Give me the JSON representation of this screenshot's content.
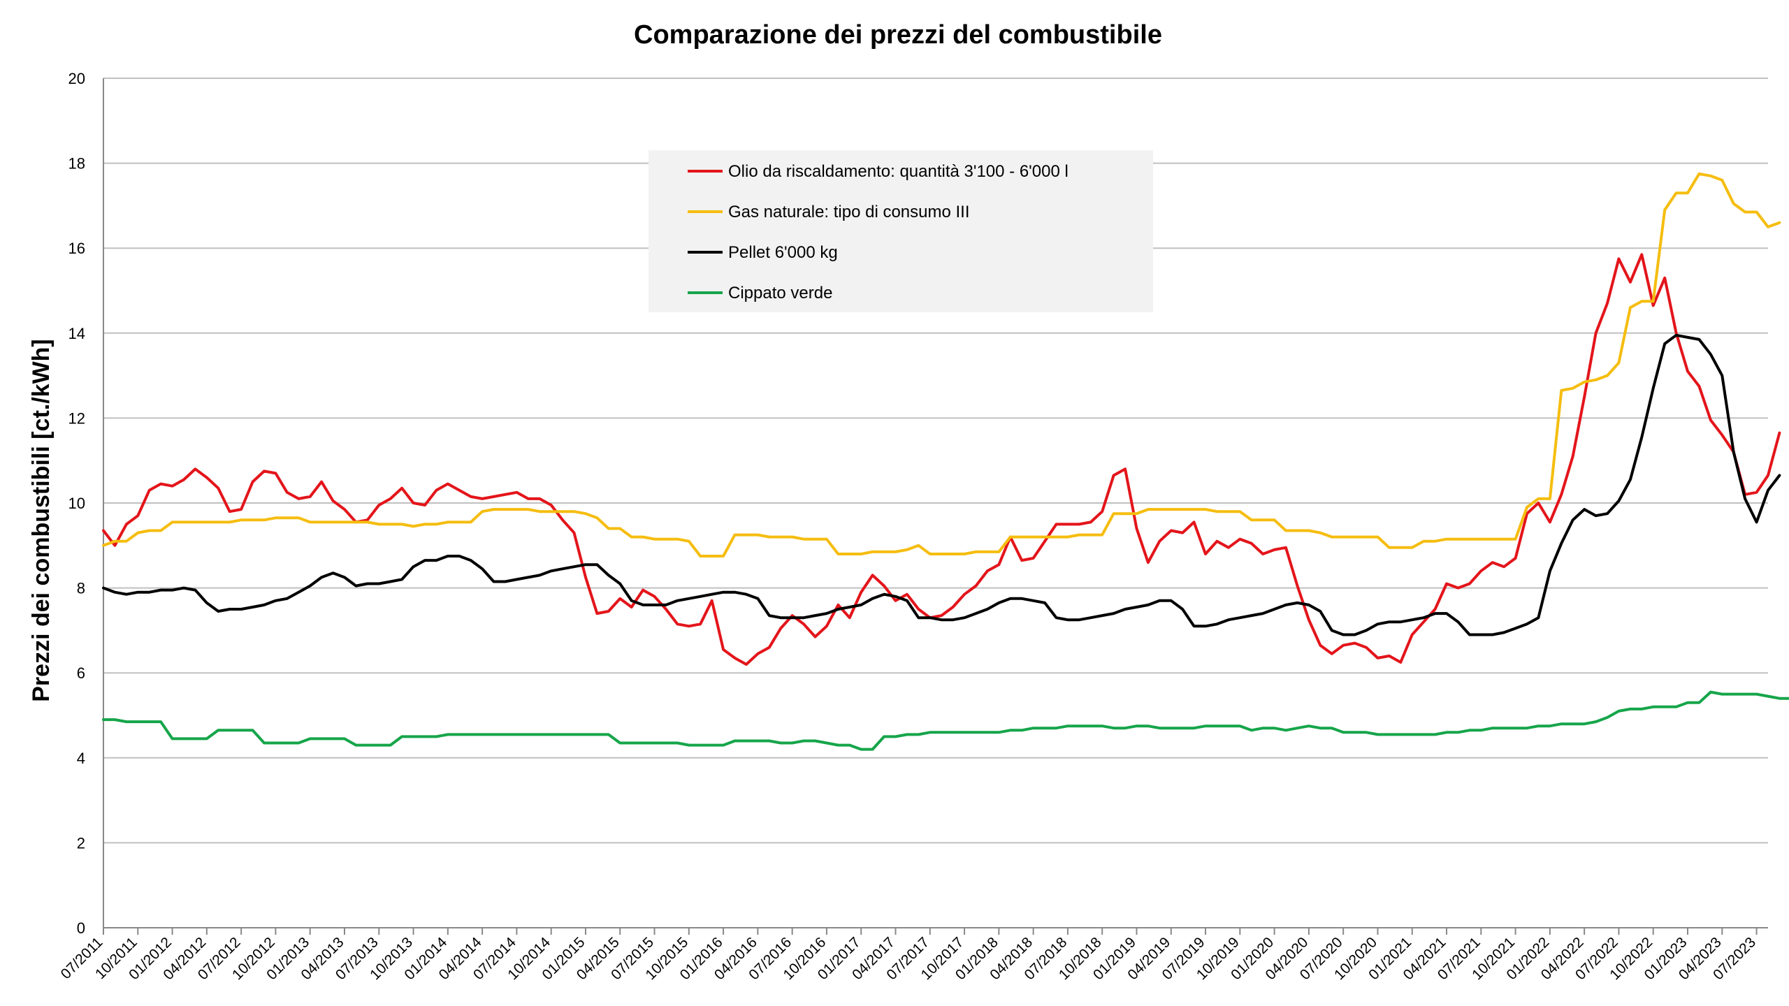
{
  "chart_data": {
    "type": "line",
    "title": "Comparazione dei prezzi del combustibile",
    "ylabel": "Prezzi dei combustibili [ct./kWh]",
    "xlabel": "",
    "ylim": [
      0,
      20
    ],
    "yticks": [
      0,
      2,
      4,
      6,
      8,
      10,
      12,
      14,
      16,
      18,
      20
    ],
    "grid": "horizontal",
    "legend_position": "top-center",
    "x_start": "07/2011",
    "x_end": "08/2023",
    "x_ticks": [
      "07/2011",
      "10/2011",
      "01/2012",
      "04/2012",
      "07/2012",
      "10/2012",
      "01/2013",
      "04/2013",
      "07/2013",
      "10/2013",
      "01/2014",
      "04/2014",
      "07/2014",
      "10/2014",
      "01/2015",
      "04/2015",
      "07/2015",
      "10/2015",
      "01/2016",
      "04/2016",
      "07/2016",
      "10/2016",
      "01/2017",
      "04/2017",
      "07/2017",
      "10/2017",
      "01/2018",
      "04/2018",
      "07/2018",
      "10/2018",
      "01/2019",
      "04/2019",
      "07/2019",
      "10/2019",
      "01/2020",
      "04/2020",
      "07/2020",
      "10/2020",
      "01/2021",
      "04/2021",
      "07/2021",
      "10/2021",
      "01/2022",
      "04/2022",
      "07/2022",
      "10/2022",
      "01/2023",
      "04/2023",
      "07/2023"
    ],
    "series": [
      {
        "name": "Olio da riscaldamento: quantità 3'100 - 6'000 l",
        "color": "#e3151b",
        "values": [
          9.35,
          9.0,
          9.5,
          9.7,
          10.3,
          10.45,
          10.4,
          10.55,
          10.8,
          10.6,
          10.35,
          9.8,
          9.85,
          10.5,
          10.75,
          10.7,
          10.25,
          10.1,
          10.15,
          10.5,
          10.05,
          9.85,
          9.55,
          9.6,
          9.95,
          10.1,
          10.35,
          10.0,
          9.95,
          10.3,
          10.45,
          10.3,
          10.15,
          10.1,
          10.15,
          10.2,
          10.25,
          10.1,
          10.1,
          9.95,
          9.6,
          9.3,
          8.25,
          7.4,
          7.45,
          7.75,
          7.55,
          7.95,
          7.8,
          7.5,
          7.15,
          7.1,
          7.15,
          7.7,
          6.55,
          6.35,
          6.2,
          6.45,
          6.6,
          7.05,
          7.35,
          7.15,
          6.85,
          7.1,
          7.6,
          7.3,
          7.9,
          8.3,
          8.05,
          7.7,
          7.85,
          7.5,
          7.3,
          7.35,
          7.55,
          7.85,
          8.05,
          8.4,
          8.55,
          9.2,
          8.65,
          8.7,
          9.1,
          9.5,
          9.5,
          9.5,
          9.55,
          9.8,
          10.65,
          10.8,
          9.4,
          8.6,
          9.1,
          9.35,
          9.3,
          9.55,
          8.8,
          9.1,
          8.95,
          9.15,
          9.05,
          8.8,
          8.9,
          8.95,
          8.05,
          7.25,
          6.65,
          6.45,
          6.65,
          6.7,
          6.6,
          6.35,
          6.4,
          6.25,
          6.9,
          7.2,
          7.5,
          8.1,
          8.0,
          8.1,
          8.4,
          8.6,
          8.5,
          8.7,
          9.75,
          10.0,
          9.55,
          10.2,
          11.1,
          12.5,
          14.0,
          14.7,
          15.75,
          15.2,
          15.85,
          14.65,
          15.3,
          14.0,
          13.1,
          12.75,
          11.95,
          11.6,
          11.2,
          10.2,
          10.25,
          10.65,
          11.65
        ]
      },
      {
        "name": "Gas naturale: tipo di consumo III",
        "color": "#f5bd10",
        "values": [
          9.0,
          9.1,
          9.1,
          9.3,
          9.35,
          9.35,
          9.55,
          9.55,
          9.55,
          9.55,
          9.55,
          9.55,
          9.6,
          9.6,
          9.6,
          9.65,
          9.65,
          9.65,
          9.55,
          9.55,
          9.55,
          9.55,
          9.55,
          9.55,
          9.5,
          9.5,
          9.5,
          9.45,
          9.5,
          9.5,
          9.55,
          9.55,
          9.55,
          9.8,
          9.85,
          9.85,
          9.85,
          9.85,
          9.8,
          9.8,
          9.8,
          9.8,
          9.75,
          9.65,
          9.4,
          9.4,
          9.2,
          9.2,
          9.15,
          9.15,
          9.15,
          9.1,
          8.75,
          8.75,
          8.75,
          9.25,
          9.25,
          9.25,
          9.2,
          9.2,
          9.2,
          9.15,
          9.15,
          9.15,
          8.8,
          8.8,
          8.8,
          8.85,
          8.85,
          8.85,
          8.9,
          9.0,
          8.8,
          8.8,
          8.8,
          8.8,
          8.85,
          8.85,
          8.85,
          9.2,
          9.2,
          9.2,
          9.2,
          9.2,
          9.2,
          9.25,
          9.25,
          9.25,
          9.75,
          9.75,
          9.75,
          9.85,
          9.85,
          9.85,
          9.85,
          9.85,
          9.85,
          9.8,
          9.8,
          9.8,
          9.6,
          9.6,
          9.6,
          9.35,
          9.35,
          9.35,
          9.3,
          9.2,
          9.2,
          9.2,
          9.2,
          9.2,
          8.95,
          8.95,
          8.95,
          9.1,
          9.1,
          9.15,
          9.15,
          9.15,
          9.15,
          9.15,
          9.15,
          9.15,
          9.9,
          10.1,
          10.1,
          12.65,
          12.7,
          12.85,
          12.9,
          13.0,
          13.3,
          14.6,
          14.75,
          14.75,
          16.9,
          17.3,
          17.3,
          17.75,
          17.7,
          17.6,
          17.05,
          16.85,
          16.85,
          16.5,
          16.6
        ]
      },
      {
        "name": "Pellet 6'000 kg",
        "color": "#000000",
        "values": [
          8.0,
          7.9,
          7.85,
          7.9,
          7.9,
          7.95,
          7.95,
          8.0,
          7.95,
          7.65,
          7.45,
          7.5,
          7.5,
          7.55,
          7.6,
          7.7,
          7.75,
          7.9,
          8.05,
          8.25,
          8.35,
          8.25,
          8.05,
          8.1,
          8.1,
          8.15,
          8.2,
          8.5,
          8.65,
          8.65,
          8.75,
          8.75,
          8.65,
          8.45,
          8.15,
          8.15,
          8.2,
          8.25,
          8.3,
          8.4,
          8.45,
          8.5,
          8.55,
          8.55,
          8.3,
          8.1,
          7.7,
          7.6,
          7.6,
          7.6,
          7.7,
          7.75,
          7.8,
          7.85,
          7.9,
          7.9,
          7.85,
          7.75,
          7.35,
          7.3,
          7.3,
          7.3,
          7.35,
          7.4,
          7.5,
          7.55,
          7.6,
          7.75,
          7.85,
          7.8,
          7.7,
          7.3,
          7.3,
          7.25,
          7.25,
          7.3,
          7.4,
          7.5,
          7.65,
          7.75,
          7.75,
          7.7,
          7.65,
          7.3,
          7.25,
          7.25,
          7.3,
          7.35,
          7.4,
          7.5,
          7.55,
          7.6,
          7.7,
          7.7,
          7.5,
          7.1,
          7.1,
          7.15,
          7.25,
          7.3,
          7.35,
          7.4,
          7.5,
          7.6,
          7.65,
          7.6,
          7.45,
          7.0,
          6.9,
          6.9,
          7.0,
          7.15,
          7.2,
          7.2,
          7.25,
          7.3,
          7.4,
          7.4,
          7.2,
          6.9,
          6.9,
          6.9,
          6.95,
          7.05,
          7.15,
          7.3,
          8.4,
          9.05,
          9.6,
          9.85,
          9.7,
          9.75,
          10.05,
          10.55,
          11.55,
          12.7,
          13.75,
          13.95,
          13.9,
          13.85,
          13.5,
          13.0,
          11.2,
          10.1,
          9.55,
          10.3,
          10.65
        ]
      },
      {
        "name": "Cippato verde",
        "color": "#16a54a",
        "values": [
          4.9,
          4.9,
          4.85,
          4.85,
          4.85,
          4.85,
          4.45,
          4.45,
          4.45,
          4.45,
          4.65,
          4.65,
          4.65,
          4.65,
          4.35,
          4.35,
          4.35,
          4.35,
          4.45,
          4.45,
          4.45,
          4.45,
          4.3,
          4.3,
          4.3,
          4.3,
          4.5,
          4.5,
          4.5,
          4.5,
          4.55,
          4.55,
          4.55,
          4.55,
          4.55,
          4.55,
          4.55,
          4.55,
          4.55,
          4.55,
          4.55,
          4.55,
          4.55,
          4.55,
          4.55,
          4.35,
          4.35,
          4.35,
          4.35,
          4.35,
          4.35,
          4.3,
          4.3,
          4.3,
          4.3,
          4.4,
          4.4,
          4.4,
          4.4,
          4.35,
          4.35,
          4.4,
          4.4,
          4.35,
          4.3,
          4.3,
          4.2,
          4.2,
          4.5,
          4.5,
          4.55,
          4.55,
          4.6,
          4.6,
          4.6,
          4.6,
          4.6,
          4.6,
          4.6,
          4.65,
          4.65,
          4.7,
          4.7,
          4.7,
          4.75,
          4.75,
          4.75,
          4.75,
          4.7,
          4.7,
          4.75,
          4.75,
          4.7,
          4.7,
          4.7,
          4.7,
          4.75,
          4.75,
          4.75,
          4.75,
          4.65,
          4.7,
          4.7,
          4.65,
          4.7,
          4.75,
          4.7,
          4.7,
          4.6,
          4.6,
          4.6,
          4.55,
          4.55,
          4.55,
          4.55,
          4.55,
          4.55,
          4.6,
          4.6,
          4.65,
          4.65,
          4.7,
          4.7,
          4.7,
          4.7,
          4.75,
          4.75,
          4.8,
          4.8,
          4.8,
          4.85,
          4.95,
          5.1,
          5.15,
          5.15,
          5.2,
          5.2,
          5.2,
          5.3,
          5.3,
          5.55,
          5.5,
          5.5,
          5.5,
          5.5,
          5.45,
          5.4,
          5.4,
          5.35,
          5.35
        ]
      }
    ]
  }
}
